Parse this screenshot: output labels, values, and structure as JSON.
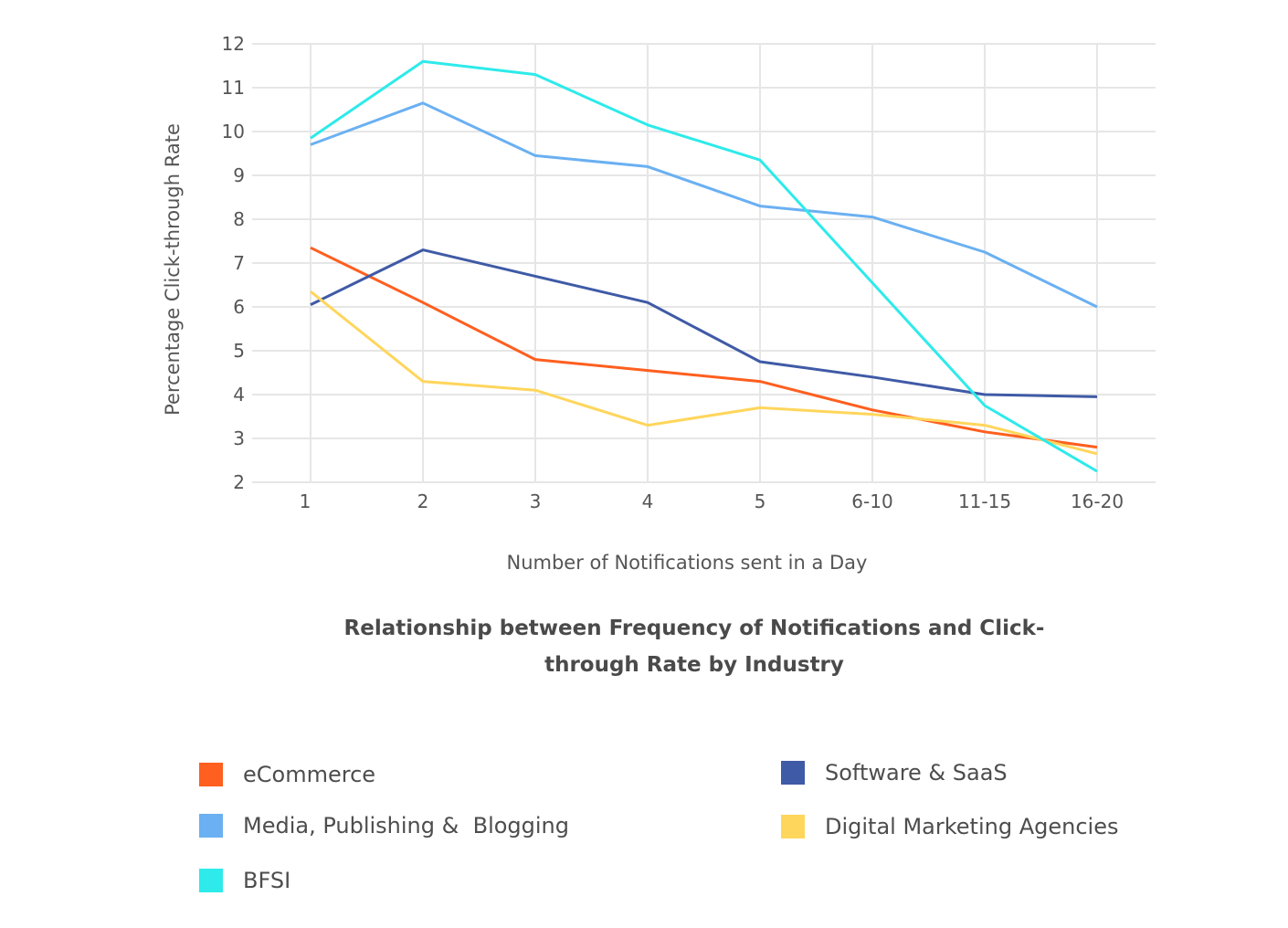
{
  "chart_data": {
    "type": "line",
    "title": "Relationship between Frequency of Notifications and Click-through Rate by Industry",
    "xlabel": "Number of Notifications sent in a Day",
    "ylabel": "Percentage Click-through Rate",
    "categories": [
      "1",
      "2",
      "3",
      "4",
      "5",
      "6-10",
      "11-15",
      "16-20"
    ],
    "ylim": [
      2,
      12
    ],
    "yticks": [
      "2",
      "3",
      "4",
      "5",
      "6",
      "7",
      "8",
      "9",
      "10",
      "11",
      "12"
    ],
    "grid": true,
    "legend_position": "bottom",
    "series": [
      {
        "name": "eCommerce",
        "color": "#ff5f1f",
        "values": [
          7.35,
          6.1,
          4.8,
          4.55,
          4.3,
          3.65,
          3.15,
          2.8
        ]
      },
      {
        "name": "Software & SaaS",
        "color": "#3f5aa6",
        "values": [
          6.05,
          7.3,
          6.7,
          6.1,
          4.75,
          4.4,
          4.0,
          3.95
        ]
      },
      {
        "name": "Media, Publishing &  Blogging",
        "color": "#6ab0f2",
        "values": [
          9.7,
          10.65,
          9.45,
          9.2,
          8.3,
          8.05,
          7.25,
          6.0
        ]
      },
      {
        "name": "Digital Marketing Agencies",
        "color": "#ffd65c",
        "values": [
          6.35,
          4.3,
          4.1,
          3.3,
          3.7,
          3.55,
          3.3,
          2.65
        ]
      },
      {
        "name": "BFSI",
        "color": "#2eeaea",
        "values": [
          9.85,
          11.6,
          11.3,
          10.15,
          9.35,
          6.55,
          3.75,
          2.25
        ]
      }
    ]
  }
}
